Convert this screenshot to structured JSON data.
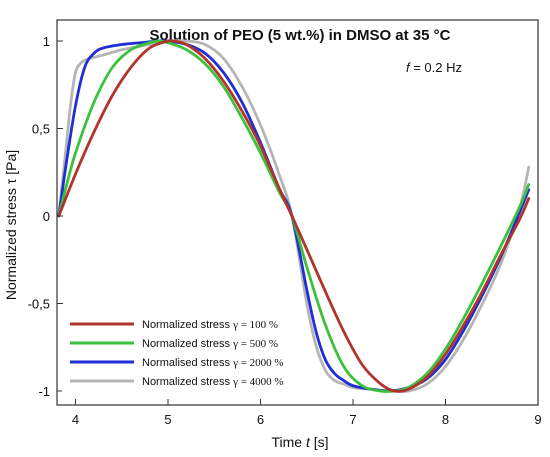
{
  "chart_data": {
    "type": "line",
    "title": "Solution of PEO (5 wt.%) in DMSO at 35 °C",
    "annotation": {
      "var": "f",
      "rest": " = 0.2 Hz"
    },
    "xlabel": {
      "prefix": "Time ",
      "var": "t",
      "unit": " [s]"
    },
    "ylabel": {
      "prefix": "Normalized stress ",
      "var": "τ",
      "unit": " [Pa]"
    },
    "xlim": [
      3.8,
      9.0
    ],
    "ylim": [
      -1.08,
      1.12
    ],
    "x_ticks": [
      "4",
      "5",
      "6",
      "7",
      "8",
      "9"
    ],
    "x_tick_values": [
      4,
      5,
      6,
      7,
      8,
      9
    ],
    "y_ticks": [
      "1",
      "0,5",
      "0",
      "-0,5",
      "-1"
    ],
    "y_tick_values": [
      1,
      0.5,
      0,
      -0.5,
      -1
    ],
    "grid": false,
    "legend_position": "bottom-left",
    "series": [
      {
        "name": "Normalized stress",
        "gamma": "γ = 100 %",
        "color": "#b0342a",
        "x": [
          3.82,
          4.0,
          4.2,
          4.4,
          4.6,
          4.8,
          5.0,
          5.06,
          5.2,
          5.4,
          5.6,
          5.8,
          6.0,
          6.2,
          6.34,
          6.5,
          6.7,
          6.9,
          7.1,
          7.3,
          7.45,
          7.6,
          7.8,
          8.0,
          8.2,
          8.4,
          8.6,
          8.8,
          8.9
        ],
        "y": [
          0.0,
          0.24,
          0.48,
          0.69,
          0.85,
          0.96,
          1.0,
          1.0,
          0.98,
          0.9,
          0.77,
          0.6,
          0.4,
          0.16,
          0.0,
          -0.19,
          -0.43,
          -0.66,
          -0.85,
          -0.96,
          -1.0,
          -0.99,
          -0.92,
          -0.79,
          -0.62,
          -0.43,
          -0.22,
          -0.02,
          0.1
        ]
      },
      {
        "name": "Normalized stress",
        "gamma": "γ = 500 %",
        "color": "#3cc13c",
        "x": [
          3.82,
          3.9,
          4.0,
          4.2,
          4.4,
          4.6,
          4.8,
          4.9,
          5.0,
          5.2,
          5.4,
          5.6,
          5.8,
          6.0,
          6.2,
          6.34,
          6.5,
          6.7,
          6.9,
          7.1,
          7.3,
          7.45,
          7.6,
          7.8,
          8.0,
          8.2,
          8.4,
          8.6,
          8.8,
          8.9
        ],
        "y": [
          0.0,
          0.17,
          0.36,
          0.65,
          0.85,
          0.95,
          0.99,
          1.0,
          0.99,
          0.95,
          0.87,
          0.74,
          0.56,
          0.36,
          0.14,
          0.0,
          -0.29,
          -0.62,
          -0.86,
          -0.97,
          -1.0,
          -1.0,
          -0.98,
          -0.9,
          -0.76,
          -0.58,
          -0.38,
          -0.17,
          0.05,
          0.18
        ]
      },
      {
        "name": "Normalised stress",
        "gamma": "γ = 2000 %",
        "color": "#1f2ed6",
        "x": [
          3.82,
          3.9,
          4.0,
          4.1,
          4.2,
          4.3,
          4.5,
          4.7,
          4.9,
          5.0,
          5.2,
          5.4,
          5.6,
          5.8,
          6.0,
          6.2,
          6.34,
          6.5,
          6.6,
          6.7,
          6.8,
          6.9,
          7.0,
          7.2,
          7.4,
          7.6,
          7.8,
          8.0,
          8.2,
          8.4,
          8.6,
          8.8,
          8.9
        ],
        "y": [
          0.0,
          0.3,
          0.63,
          0.85,
          0.93,
          0.96,
          0.98,
          0.99,
          1.0,
          1.0,
          0.98,
          0.93,
          0.82,
          0.65,
          0.42,
          0.16,
          0.0,
          -0.42,
          -0.66,
          -0.82,
          -0.9,
          -0.94,
          -0.97,
          -0.99,
          -1.0,
          -0.98,
          -0.93,
          -0.82,
          -0.65,
          -0.45,
          -0.23,
          0.02,
          0.15
        ]
      },
      {
        "name": "Normalized stress",
        "gamma": "γ = 4000 %",
        "color": "#b5b5b5",
        "x": [
          3.82,
          3.9,
          3.95,
          4.0,
          4.05,
          4.1,
          4.15,
          4.3,
          4.5,
          4.7,
          4.9,
          5.0,
          5.2,
          5.4,
          5.6,
          5.8,
          6.0,
          6.2,
          6.34,
          6.5,
          6.6,
          6.7,
          6.8,
          6.9,
          7.0,
          7.2,
          7.4,
          7.6,
          7.8,
          8.0,
          8.2,
          8.4,
          8.6,
          8.8,
          8.9
        ],
        "y": [
          0.0,
          0.4,
          0.65,
          0.82,
          0.87,
          0.89,
          0.9,
          0.92,
          0.95,
          0.97,
          0.99,
          1.0,
          1.0,
          0.98,
          0.9,
          0.74,
          0.52,
          0.24,
          0.0,
          -0.5,
          -0.74,
          -0.88,
          -0.94,
          -0.96,
          -0.98,
          -0.99,
          -1.0,
          -1.0,
          -0.96,
          -0.86,
          -0.7,
          -0.5,
          -0.27,
          0.04,
          0.28
        ]
      }
    ]
  }
}
